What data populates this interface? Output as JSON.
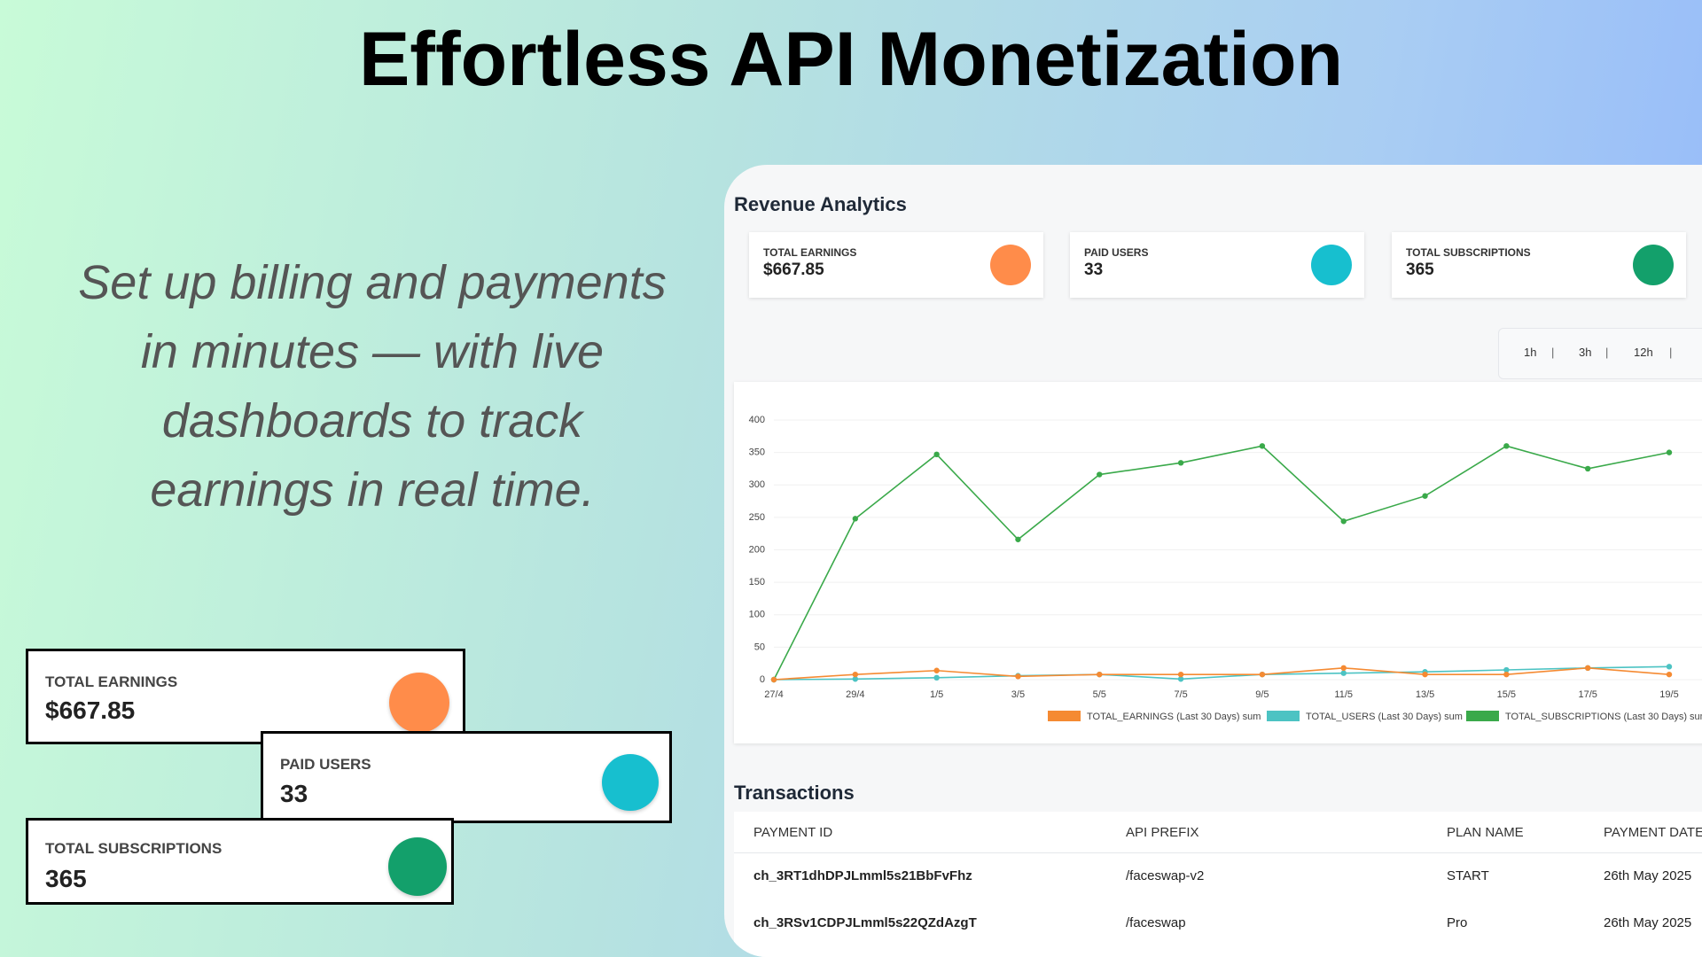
{
  "headline": "Effortless API Monetization",
  "tagline": [
    "Set up billing and payments",
    "in minutes — with live",
    "dashboards to track",
    "earnings in real time."
  ],
  "dashboard": {
    "title": "Revenue Analytics",
    "cards": [
      {
        "label": "TOTAL EARNINGS",
        "value": "$667.85",
        "color": "#ff8c4a"
      },
      {
        "label": "PAID USERS",
        "value": "33",
        "color": "#17bfcf"
      },
      {
        "label": "TOTAL SUBSCRIPTIONS",
        "value": "365",
        "color": "#13a06b"
      }
    ],
    "time_ranges": [
      "1h",
      "3h",
      "12h"
    ],
    "transactions": {
      "title": "Transactions",
      "columns": [
        "PAYMENT ID",
        "API PREFIX",
        "PLAN NAME",
        "PAYMENT DATE"
      ],
      "rows": [
        [
          "ch_3RT1dhDPJLmml5s21BbFvFhz",
          "/faceswap-v2",
          "START",
          "26th May 2025"
        ],
        [
          "ch_3RSv1CDPJLmml5s22QZdAzgT",
          "/faceswap",
          "Pro",
          "26th May 2025"
        ]
      ]
    }
  },
  "chart_data": {
    "type": "line",
    "categories": [
      "27/4",
      "29/4",
      "1/5",
      "3/5",
      "5/5",
      "7/5",
      "9/5",
      "11/5",
      "13/5",
      "15/5",
      "17/5",
      "19/5"
    ],
    "series": [
      {
        "name": "TOTAL_EARNINGS (Last 30 Days) sum",
        "color": "#f58a32",
        "values": [
          0,
          8,
          14,
          5,
          8,
          8,
          8,
          18,
          8,
          8,
          18,
          8
        ]
      },
      {
        "name": "TOTAL_USERS (Last 30 Days) sum",
        "color": "#4cc3c3",
        "values": [
          0,
          1,
          3,
          6,
          8,
          1,
          8,
          10,
          12,
          15,
          18,
          20
        ]
      },
      {
        "name": "TOTAL_SUBSCRIPTIONS (Last 30 Days) sum",
        "color": "#3aa94a",
        "values": [
          0,
          248,
          347,
          216,
          316,
          334,
          360,
          244,
          283,
          360,
          325,
          350
        ]
      }
    ],
    "ylim": [
      0,
      400
    ],
    "yticks": [
      0,
      50,
      100,
      150,
      200,
      250,
      300,
      350,
      400
    ],
    "grid": true
  }
}
